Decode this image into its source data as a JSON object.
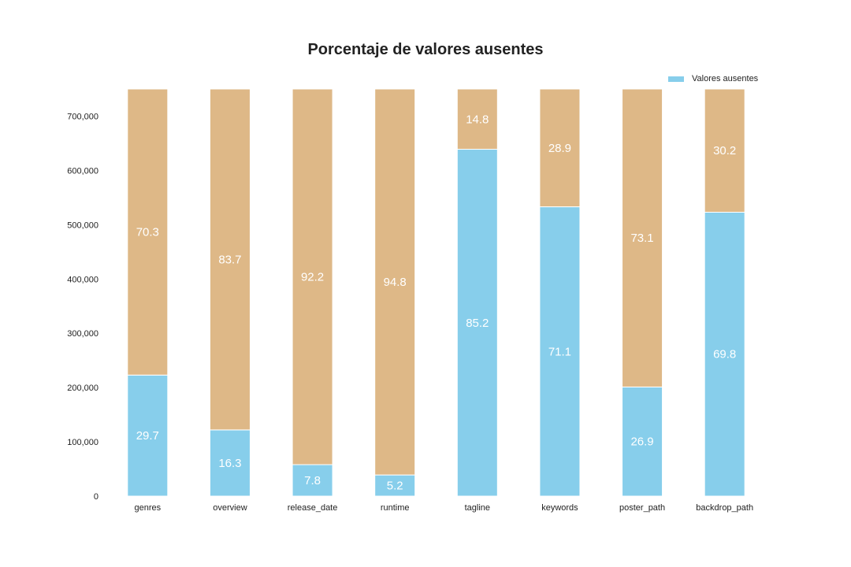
{
  "chart_data": {
    "type": "bar",
    "stacked": true,
    "title": "Porcentaje de valores ausentes",
    "xlabel": "",
    "ylabel": "",
    "ylim": [
      0,
      750000
    ],
    "yticks": [
      0,
      100000,
      200000,
      300000,
      400000,
      500000,
      600000,
      700000
    ],
    "ytick_labels": [
      "0",
      "100,000",
      "200,000",
      "300,000",
      "400,000",
      "500,000",
      "600,000",
      "700,000"
    ],
    "categories": [
      "genres",
      "overview",
      "release_date",
      "runtime",
      "tagline",
      "keywords",
      "poster_path",
      "backdrop_path"
    ],
    "series": [
      {
        "name": "Valores ausentes",
        "color": "#87CEEB",
        "values": [
          223000,
          122000,
          58000,
          39000,
          639000,
          533000,
          201000,
          523000
        ],
        "labels": [
          "29.7",
          "16.3",
          "7.8",
          "5.2",
          "85.2",
          "71.1",
          "26.9",
          "69.8"
        ]
      },
      {
        "color": "#DEB887",
        "values": [
          527000,
          628000,
          692000,
          711000,
          111000,
          217000,
          549000,
          227000
        ],
        "labels": [
          "70.3",
          "83.7",
          "92.2",
          "94.8",
          "14.8",
          "28.9",
          "73.1",
          "30.2"
        ]
      }
    ],
    "legend": {
      "position": "top-right",
      "entries": [
        "Valores ausentes"
      ]
    },
    "grid": false
  }
}
